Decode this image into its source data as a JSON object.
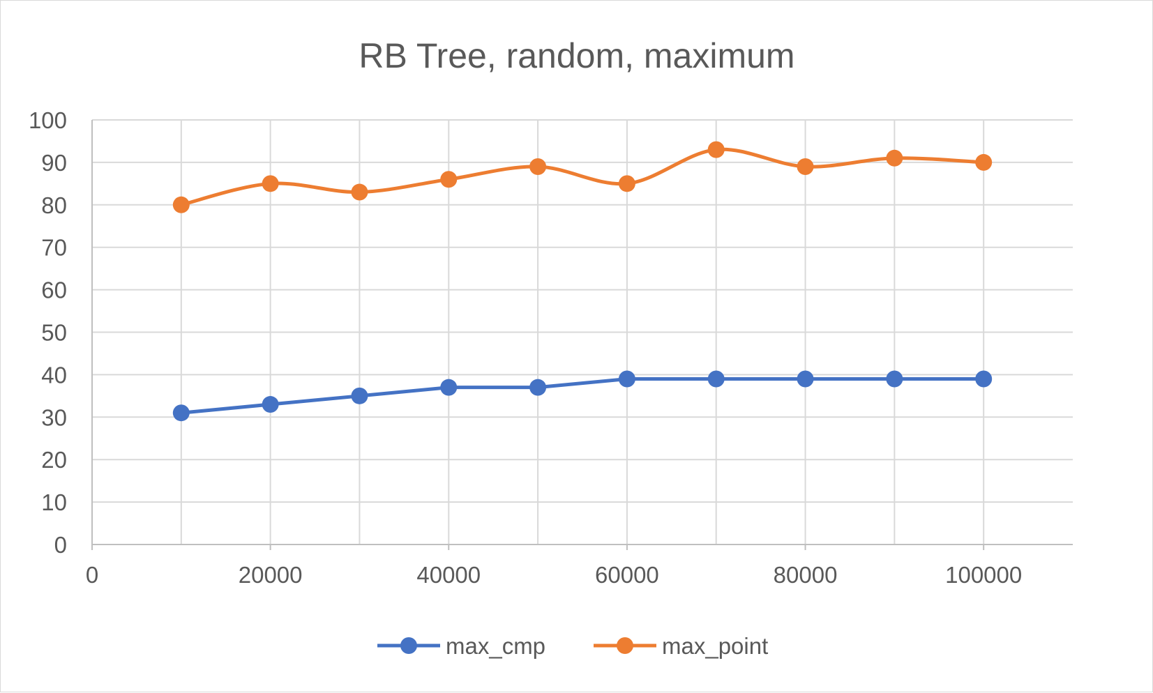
{
  "chart_data": {
    "type": "line",
    "title": "RB Tree, random, maximum",
    "xlabel": "",
    "ylabel": "",
    "xlim": [
      0,
      110000
    ],
    "ylim": [
      0,
      100
    ],
    "x_ticks": [
      "0",
      "20000",
      "40000",
      "60000",
      "80000",
      "100000"
    ],
    "y_ticks": [
      "0",
      "10",
      "20",
      "30",
      "40",
      "50",
      "60",
      "70",
      "80",
      "90",
      "100"
    ],
    "grid": true,
    "legend_position": "bottom",
    "x": [
      10000,
      20000,
      30000,
      40000,
      50000,
      60000,
      70000,
      80000,
      90000,
      100000
    ],
    "series": [
      {
        "name": "max_cmp",
        "color": "#4472c4",
        "smooth": false,
        "values": [
          31,
          33,
          35,
          37,
          37,
          39,
          39,
          39,
          39,
          39
        ]
      },
      {
        "name": "max_point",
        "color": "#ed7d31",
        "smooth": true,
        "values": [
          80,
          85,
          83,
          86,
          89,
          85,
          93,
          89,
          91,
          90
        ]
      }
    ]
  }
}
